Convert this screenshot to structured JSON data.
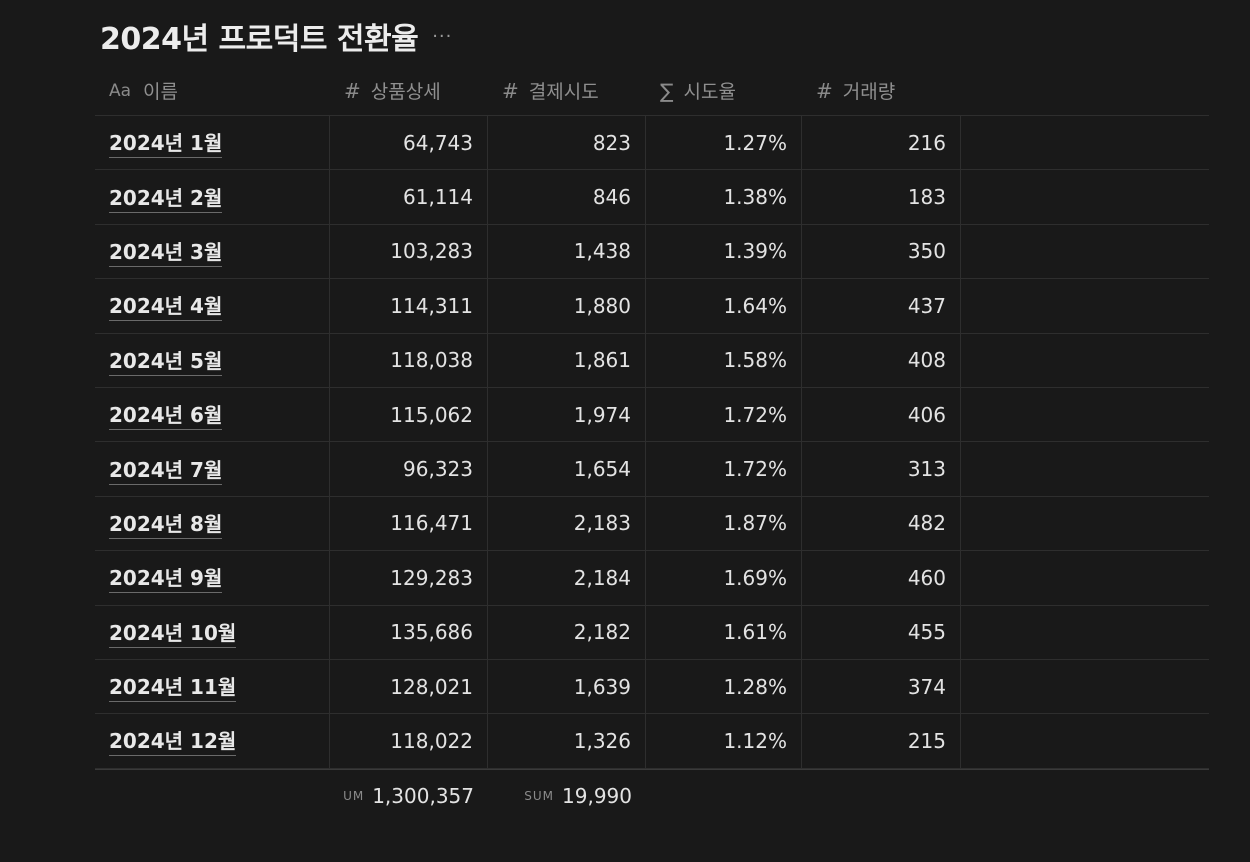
{
  "page": {
    "title": "2024년 프로덕트 전환율",
    "more_label": "···"
  },
  "table": {
    "columns": [
      {
        "icon": "Aa",
        "icon_name": "text-property-icon",
        "label": "이름"
      },
      {
        "icon": "#",
        "icon_name": "number-property-icon",
        "label": "상품상세"
      },
      {
        "icon": "#",
        "icon_name": "number-property-icon",
        "label": "결제시도"
      },
      {
        "icon": "∑",
        "icon_name": "formula-property-icon",
        "label": "시도율"
      },
      {
        "icon": "#",
        "icon_name": "number-property-icon",
        "label": "거래량"
      }
    ],
    "rows": [
      {
        "name": "2024년 1월",
        "detail": "64,743",
        "attempt": "823",
        "rate": "1.27%",
        "volume": "216"
      },
      {
        "name": "2024년 2월",
        "detail": "61,114",
        "attempt": "846",
        "rate": "1.38%",
        "volume": "183"
      },
      {
        "name": "2024년 3월",
        "detail": "103,283",
        "attempt": "1,438",
        "rate": "1.39%",
        "volume": "350"
      },
      {
        "name": "2024년 4월",
        "detail": "114,311",
        "attempt": "1,880",
        "rate": "1.64%",
        "volume": "437"
      },
      {
        "name": "2024년 5월",
        "detail": "118,038",
        "attempt": "1,861",
        "rate": "1.58%",
        "volume": "408"
      },
      {
        "name": "2024년 6월",
        "detail": "115,062",
        "attempt": "1,974",
        "rate": "1.72%",
        "volume": "406"
      },
      {
        "name": "2024년 7월",
        "detail": "96,323",
        "attempt": "1,654",
        "rate": "1.72%",
        "volume": "313"
      },
      {
        "name": "2024년 8월",
        "detail": "116,471",
        "attempt": "2,183",
        "rate": "1.87%",
        "volume": "482"
      },
      {
        "name": "2024년 9월",
        "detail": "129,283",
        "attempt": "2,184",
        "rate": "1.69%",
        "volume": "460"
      },
      {
        "name": "2024년 10월",
        "detail": "135,686",
        "attempt": "2,182",
        "rate": "1.61%",
        "volume": "455"
      },
      {
        "name": "2024년 11월",
        "detail": "128,021",
        "attempt": "1,639",
        "rate": "1.28%",
        "volume": "374"
      },
      {
        "name": "2024년 12월",
        "detail": "118,022",
        "attempt": "1,326",
        "rate": "1.12%",
        "volume": "215"
      }
    ],
    "footer": {
      "detail_label": "UM",
      "detail_sum": "1,300,357",
      "attempt_label": "SUM",
      "attempt_sum": "19,990"
    }
  },
  "colors": {
    "background": "#191919",
    "text": "#e3e3e3",
    "muted": "#8f8f8f",
    "border": "#2e2e2e"
  }
}
